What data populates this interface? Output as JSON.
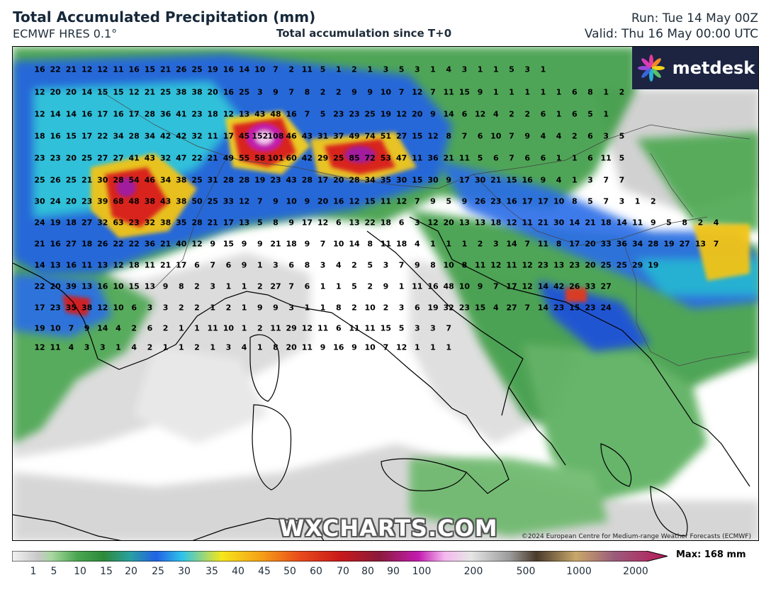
{
  "header": {
    "title": "Total Accumulated Precipitation (mm)",
    "model": "ECMWF HRES 0.1°",
    "subtitle": "Total accumulation since T+0",
    "run": "Run: Tue 14 May 00Z",
    "valid": "Valid: Thu 16 May 00:00 UTC"
  },
  "logo": {
    "text": "metdesk",
    "icon": "pinwheel-logo-icon"
  },
  "watermark": "WXCHARTS.COM",
  "copyright": "©2024 European Centre for Medium-range Weather Forecasts (ECMWF)",
  "colorbar": {
    "ticks": [
      "1",
      "5",
      "10",
      "15",
      "20",
      "25",
      "30",
      "35",
      "40",
      "45",
      "50",
      "60",
      "70",
      "80",
      "90",
      "100",
      "200",
      "500",
      "1000",
      "2000"
    ],
    "max_label": "Max: 168 mm"
  },
  "colors": {
    "frame": "#000000",
    "logo_bg": "#1d2442",
    "sea_land_bg": "#ffffff",
    "light_precip": "#cfcfcf",
    "green": "#3a9a3a",
    "blue": "#1d4fe0",
    "cyan": "#22c3e6",
    "yellow": "#f5d21a",
    "red": "#d81a1a",
    "magenta": "#c21cb0"
  },
  "station_values": [
    [
      "16",
      "22",
      "21",
      "12",
      "12",
      "11",
      "16",
      "15",
      "21",
      "26",
      "25",
      "19",
      "16",
      "14",
      "10",
      "7",
      "2",
      "11",
      "5",
      "1",
      "2",
      "1",
      "3",
      "5",
      "3",
      "1",
      "4",
      "3",
      "1",
      "1",
      "5",
      "3",
      "1"
    ],
    [
      "12",
      "20",
      "20",
      "14",
      "15",
      "15",
      "12",
      "21",
      "25",
      "38",
      "38",
      "20",
      "16",
      "25",
      "3",
      "9",
      "7",
      "8",
      "2",
      "2",
      "9",
      "9",
      "10",
      "7",
      "12",
      "7",
      "11",
      "15",
      "9",
      "1",
      "1",
      "1",
      "1",
      "1",
      "6",
      "8",
      "1",
      "2"
    ],
    [
      "12",
      "14",
      "14",
      "16",
      "17",
      "16",
      "17",
      "28",
      "36",
      "41",
      "23",
      "18",
      "12",
      "13",
      "43",
      "48",
      "16",
      "7",
      "5",
      "23",
      "23",
      "25",
      "19",
      "12",
      "20",
      "9",
      "14",
      "6",
      "12",
      "4",
      "2",
      "2",
      "6",
      "1",
      "6",
      "5",
      "1"
    ],
    [
      "18",
      "16",
      "15",
      "17",
      "22",
      "34",
      "28",
      "34",
      "42",
      "42",
      "32",
      "11",
      "17",
      "45",
      "152",
      "108",
      "46",
      "43",
      "31",
      "37",
      "49",
      "74",
      "51",
      "27",
      "15",
      "12",
      "8",
      "7",
      "6",
      "10",
      "7",
      "9",
      "4",
      "4",
      "2",
      "6",
      "3",
      "5"
    ],
    [
      "23",
      "23",
      "20",
      "25",
      "27",
      "27",
      "41",
      "43",
      "32",
      "47",
      "22",
      "21",
      "49",
      "55",
      "58",
      "101",
      "60",
      "42",
      "29",
      "25",
      "85",
      "72",
      "53",
      "47",
      "11",
      "36",
      "21",
      "11",
      "5",
      "6",
      "7",
      "6",
      "6",
      "1",
      "1",
      "6",
      "11",
      "5"
    ],
    [
      "25",
      "26",
      "25",
      "21",
      "30",
      "28",
      "54",
      "46",
      "34",
      "38",
      "25",
      "31",
      "28",
      "28",
      "19",
      "23",
      "43",
      "28",
      "17",
      "20",
      "28",
      "34",
      "35",
      "30",
      "15",
      "30",
      "9",
      "17",
      "30",
      "21",
      "15",
      "16",
      "9",
      "4",
      "1",
      "3",
      "7",
      "7"
    ],
    [
      "30",
      "24",
      "20",
      "23",
      "39",
      "68",
      "48",
      "38",
      "43",
      "38",
      "50",
      "25",
      "33",
      "12",
      "7",
      "9",
      "10",
      "9",
      "20",
      "16",
      "12",
      "15",
      "11",
      "12",
      "7",
      "9",
      "5",
      "9",
      "26",
      "23",
      "16",
      "17",
      "17",
      "10",
      "8",
      "5",
      "7",
      "3",
      "1",
      "2"
    ],
    [
      "24",
      "19",
      "18",
      "27",
      "32",
      "63",
      "23",
      "32",
      "38",
      "35",
      "28",
      "21",
      "17",
      "13",
      "5",
      "8",
      "9",
      "17",
      "12",
      "6",
      "13",
      "22",
      "18",
      "6",
      "3",
      "12",
      "20",
      "13",
      "13",
      "18",
      "12",
      "11",
      "21",
      "30",
      "14",
      "21",
      "18",
      "14",
      "11",
      "9",
      "5",
      "8",
      "2",
      "4"
    ],
    [
      "21",
      "16",
      "27",
      "18",
      "26",
      "22",
      "22",
      "36",
      "21",
      "40",
      "12",
      "9",
      "15",
      "9",
      "9",
      "21",
      "18",
      "9",
      "7",
      "10",
      "14",
      "8",
      "11",
      "18",
      "4",
      "1",
      "1",
      "1",
      "2",
      "3",
      "14",
      "7",
      "11",
      "8",
      "17",
      "20",
      "33",
      "36",
      "34",
      "28",
      "19",
      "27",
      "13",
      "7"
    ],
    [
      "14",
      "13",
      "16",
      "11",
      "13",
      "12",
      "18",
      "11",
      "21",
      "17",
      "6",
      "7",
      "6",
      "9",
      "1",
      "3",
      "6",
      "8",
      "3",
      "4",
      "2",
      "5",
      "3",
      "7",
      "9",
      "8",
      "10",
      "8",
      "11",
      "12",
      "11",
      "12",
      "23",
      "13",
      "23",
      "20",
      "25",
      "25",
      "29",
      "19"
    ],
    [
      "22",
      "20",
      "39",
      "13",
      "16",
      "10",
      "15",
      "13",
      "9",
      "8",
      "2",
      "3",
      "1",
      "1",
      "2",
      "27",
      "7",
      "6",
      "1",
      "1",
      "5",
      "2",
      "9",
      "1",
      "11",
      "16",
      "48",
      "10",
      "9",
      "7",
      "17",
      "12",
      "14",
      "42",
      "26",
      "33",
      "27"
    ],
    [
      "17",
      "23",
      "35",
      "38",
      "12",
      "10",
      "6",
      "3",
      "3",
      "2",
      "2",
      "1",
      "2",
      "1",
      "9",
      "9",
      "3",
      "1",
      "1",
      "8",
      "2",
      "10",
      "2",
      "3",
      "6",
      "19",
      "32",
      "23",
      "15",
      "4",
      "27",
      "7",
      "14",
      "23",
      "15",
      "23",
      "24"
    ],
    [
      "19",
      "10",
      "7",
      "9",
      "14",
      "4",
      "2",
      "6",
      "2",
      "1",
      "1",
      "11",
      "10",
      "1",
      "2",
      "11",
      "29",
      "12",
      "11",
      "6",
      "11",
      "11",
      "15",
      "5",
      "3",
      "3",
      "7"
    ],
    [
      "12",
      "11",
      "4",
      "3",
      "3",
      "1",
      "4",
      "2",
      "1",
      "1",
      "2",
      "1",
      "3",
      "4",
      "1",
      "8",
      "20",
      "11",
      "9",
      "16",
      "9",
      "10",
      "7",
      "12",
      "1",
      "1",
      "1"
    ]
  ]
}
